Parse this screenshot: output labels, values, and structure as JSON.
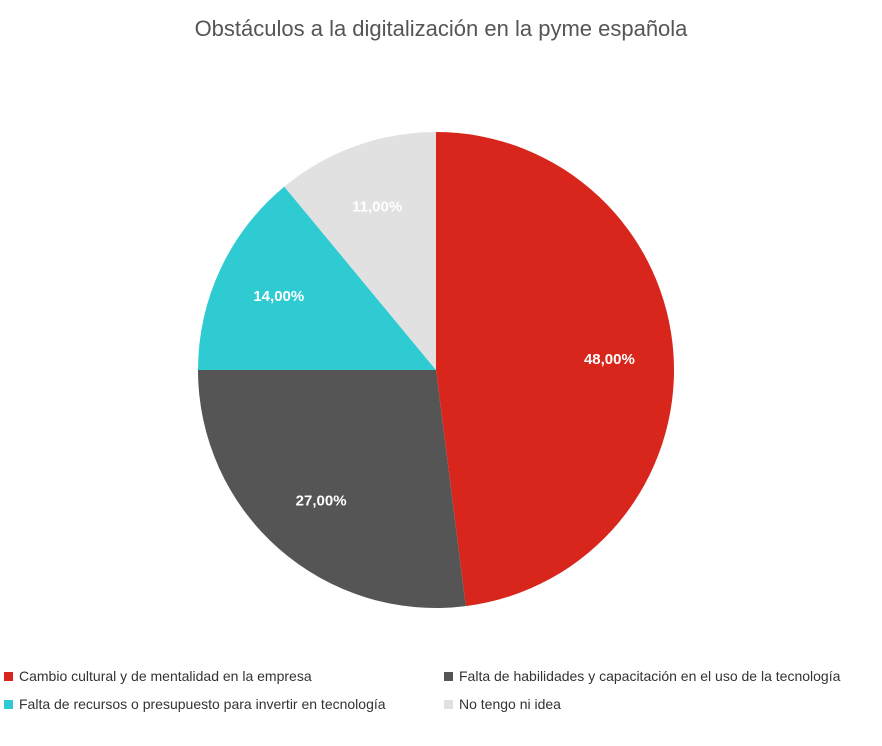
{
  "chart_data": {
    "type": "pie",
    "title": "Obstáculos a la digitalización en la pyme española",
    "slices": [
      {
        "label": "Cambio cultural y de mentalidad en la empresa",
        "value": 48,
        "display": "48,00%",
        "color": "#d9261c"
      },
      {
        "label": "Falta de habilidades y capacitación en el uso de la tecnología",
        "value": 27,
        "display": "27,00%",
        "color": "#555555"
      },
      {
        "label": "Falta de recursos o presupuesto para invertir en tecnología",
        "value": 14,
        "display": "14,00%",
        "color": "#2ecbd2"
      },
      {
        "label": "No tengo ni idea",
        "value": 11,
        "display": "11,00%",
        "color": "#e1e1e1"
      }
    ],
    "legend_position": "bottom"
  }
}
